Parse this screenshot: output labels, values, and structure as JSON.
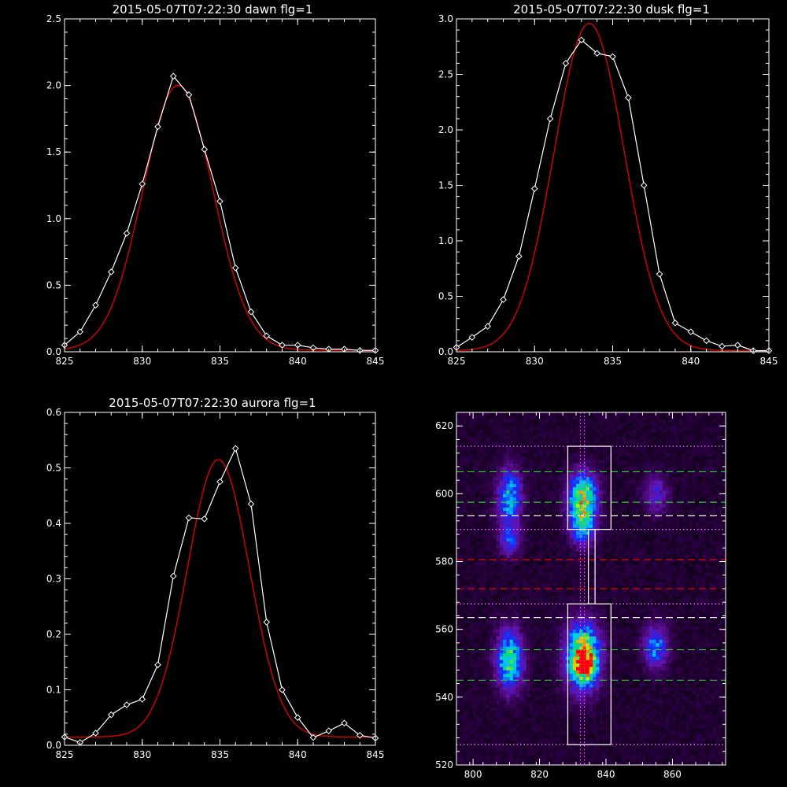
{
  "colors": {
    "background": "#000000",
    "axis": "#ffffff",
    "data": "#ffffff",
    "fit": "#dd0000"
  },
  "panels": {
    "dawn": {
      "title": "2015-05-07T07:22:30 dawn flg=1"
    },
    "dusk": {
      "title": "2015-05-07T07:22:30 dusk flg=1"
    },
    "aurora": {
      "title": "2015-05-07T07:22:30 aurora flg=1"
    },
    "image": {
      "title": ""
    }
  },
  "chart_data": [
    {
      "id": "dawn",
      "type": "line",
      "title": "2015-05-07T07:22:30 dawn flg=1",
      "xlabel": "",
      "ylabel": "",
      "xlim": [
        825,
        845
      ],
      "ylim": [
        0,
        2.5
      ],
      "xticks": [
        825,
        830,
        835,
        840,
        845
      ],
      "yticks": [
        0.0,
        0.5,
        1.0,
        1.5,
        2.0,
        2.5
      ],
      "ytick_decimals": 1,
      "series": [
        {
          "role": "data",
          "marker": "diamond",
          "color": "#ffffff",
          "x": [
            825,
            826,
            827,
            828,
            829,
            830,
            831,
            832,
            833,
            834,
            835,
            836,
            837,
            838,
            839,
            840,
            841,
            842,
            843,
            844,
            845
          ],
          "y": [
            0.05,
            0.15,
            0.35,
            0.6,
            0.89,
            1.26,
            1.69,
            2.07,
            1.93,
            1.52,
            1.13,
            0.63,
            0.3,
            0.12,
            0.05,
            0.05,
            0.03,
            0.02,
            0.02,
            0.01,
            0.01
          ]
        },
        {
          "role": "fit",
          "marker": "none",
          "color": "#dd0000",
          "gauss": {
            "amp": 1.99,
            "center": 832.3,
            "sigma": 2.25,
            "offset": 0.012
          }
        }
      ]
    },
    {
      "id": "dusk",
      "type": "line",
      "title": "2015-05-07T07:22:30 dusk flg=1",
      "xlabel": "",
      "ylabel": "",
      "xlim": [
        825,
        845
      ],
      "ylim": [
        0,
        3.0
      ],
      "xticks": [
        825,
        830,
        835,
        840,
        845
      ],
      "yticks": [
        0.0,
        0.5,
        1.0,
        1.5,
        2.0,
        2.5,
        3.0
      ],
      "ytick_decimals": 1,
      "series": [
        {
          "role": "data",
          "marker": "diamond",
          "color": "#ffffff",
          "x": [
            825,
            826,
            827,
            828,
            829,
            830,
            831,
            832,
            833,
            834,
            835,
            836,
            837,
            838,
            839,
            840,
            841,
            842,
            843,
            844,
            845
          ],
          "y": [
            0.04,
            0.13,
            0.23,
            0.47,
            0.86,
            1.47,
            2.1,
            2.6,
            2.81,
            2.69,
            2.66,
            2.29,
            1.5,
            0.7,
            0.26,
            0.18,
            0.1,
            0.05,
            0.06,
            0.01,
            0.01
          ]
        },
        {
          "role": "fit",
          "marker": "none",
          "color": "#dd0000",
          "gauss": {
            "amp": 2.95,
            "center": 833.5,
            "sigma": 2.25,
            "offset": 0.01
          }
        }
      ]
    },
    {
      "id": "aurora",
      "type": "line",
      "title": "2015-05-07T07:22:30 aurora flg=1",
      "xlabel": "",
      "ylabel": "",
      "xlim": [
        825,
        845
      ],
      "ylim": [
        0,
        0.6
      ],
      "xticks": [
        825,
        830,
        835,
        840,
        845
      ],
      "yticks": [
        0.0,
        0.1,
        0.2,
        0.3,
        0.4,
        0.5,
        0.6
      ],
      "ytick_decimals": 1,
      "series": [
        {
          "role": "data",
          "marker": "diamond",
          "color": "#ffffff",
          "x": [
            825,
            826,
            827,
            828,
            829,
            830,
            831,
            832,
            833,
            834,
            835,
            836,
            837,
            838,
            839,
            840,
            841,
            842,
            843,
            844,
            845
          ],
          "y": [
            0.015,
            0.005,
            0.022,
            0.055,
            0.073,
            0.083,
            0.145,
            0.305,
            0.41,
            0.408,
            0.475,
            0.535,
            0.435,
            0.222,
            0.1,
            0.05,
            0.014,
            0.026,
            0.04,
            0.018,
            0.013
          ]
        },
        {
          "role": "fit",
          "marker": "none",
          "color": "#dd0000",
          "gauss": {
            "amp": 0.5,
            "center": 834.9,
            "sigma": 2.0,
            "offset": 0.015
          }
        }
      ]
    },
    {
      "id": "image",
      "type": "heatmap",
      "title": "",
      "xlabel": "",
      "ylabel": "",
      "xlim": [
        795,
        876
      ],
      "ylim": [
        520,
        624
      ],
      "xticks": [
        800,
        820,
        840,
        860
      ],
      "yticks": [
        520,
        540,
        560,
        580,
        600,
        620
      ],
      "ytick_decimals": 0,
      "colormap": "rainbow",
      "blobs": [
        {
          "x": 811,
          "y": 599,
          "sx": 2.5,
          "sy": 6,
          "amp": 0.5
        },
        {
          "x": 811,
          "y": 586,
          "sx": 2.3,
          "sy": 3,
          "amp": 0.32
        },
        {
          "x": 811,
          "y": 551,
          "sx": 2.8,
          "sy": 6,
          "amp": 0.62
        },
        {
          "x": 833,
          "y": 599,
          "sx": 3,
          "sy": 5,
          "amp": 0.72
        },
        {
          "x": 833,
          "y": 590,
          "sx": 2.5,
          "sy": 4,
          "amp": 0.45
        },
        {
          "x": 833,
          "y": 552,
          "sx": 3.5,
          "sy": 6.5,
          "amp": 0.9
        },
        {
          "x": 834,
          "y": 549,
          "sx": 1.8,
          "sy": 2.5,
          "amp": 0.3
        },
        {
          "x": 855,
          "y": 600,
          "sx": 2.5,
          "sy": 4,
          "amp": 0.26
        },
        {
          "x": 855,
          "y": 555,
          "sx": 2.5,
          "sy": 4.5,
          "amp": 0.42
        }
      ],
      "vertical_lines": [
        {
          "x": 832.3,
          "style": "dotted",
          "color": "#ff44ff"
        },
        {
          "x": 833.5,
          "style": "dotted",
          "color": "#ff44ff"
        }
      ],
      "horizontal_lines": [
        {
          "y": 614,
          "style": "dotted",
          "color": "#ff88ff"
        },
        {
          "y": 606.5,
          "style": "dashed",
          "color": "#22cc22"
        },
        {
          "y": 597.5,
          "style": "dashed",
          "color": "#22cc22"
        },
        {
          "y": 593.5,
          "style": "dashed",
          "color": "#ffffff"
        },
        {
          "y": 589.5,
          "style": "dotted",
          "color": "#ff88ff"
        },
        {
          "y": 580.5,
          "style": "dashed",
          "color": "#dd0000"
        },
        {
          "y": 572,
          "style": "dashed",
          "color": "#dd0000"
        },
        {
          "y": 567.5,
          "style": "dotted",
          "color": "#ff88ff"
        },
        {
          "y": 563.5,
          "style": "dashed",
          "color": "#ffffff"
        },
        {
          "y": 554,
          "style": "dashed",
          "color": "#22cc22"
        },
        {
          "y": 545,
          "style": "dashed",
          "color": "#22cc22"
        },
        {
          "y": 526,
          "style": "dotted",
          "color": "#ff88ff"
        }
      ],
      "rectangles": [
        {
          "x0": 828.5,
          "x1": 841.5,
          "y0": 589.5,
          "y1": 614
        },
        {
          "x0": 828.5,
          "x1": 841.5,
          "y0": 526,
          "y1": 567.5
        },
        {
          "x0": 834.7,
          "x1": 836.7,
          "y0": 567.5,
          "y1": 589.5
        }
      ]
    }
  ]
}
